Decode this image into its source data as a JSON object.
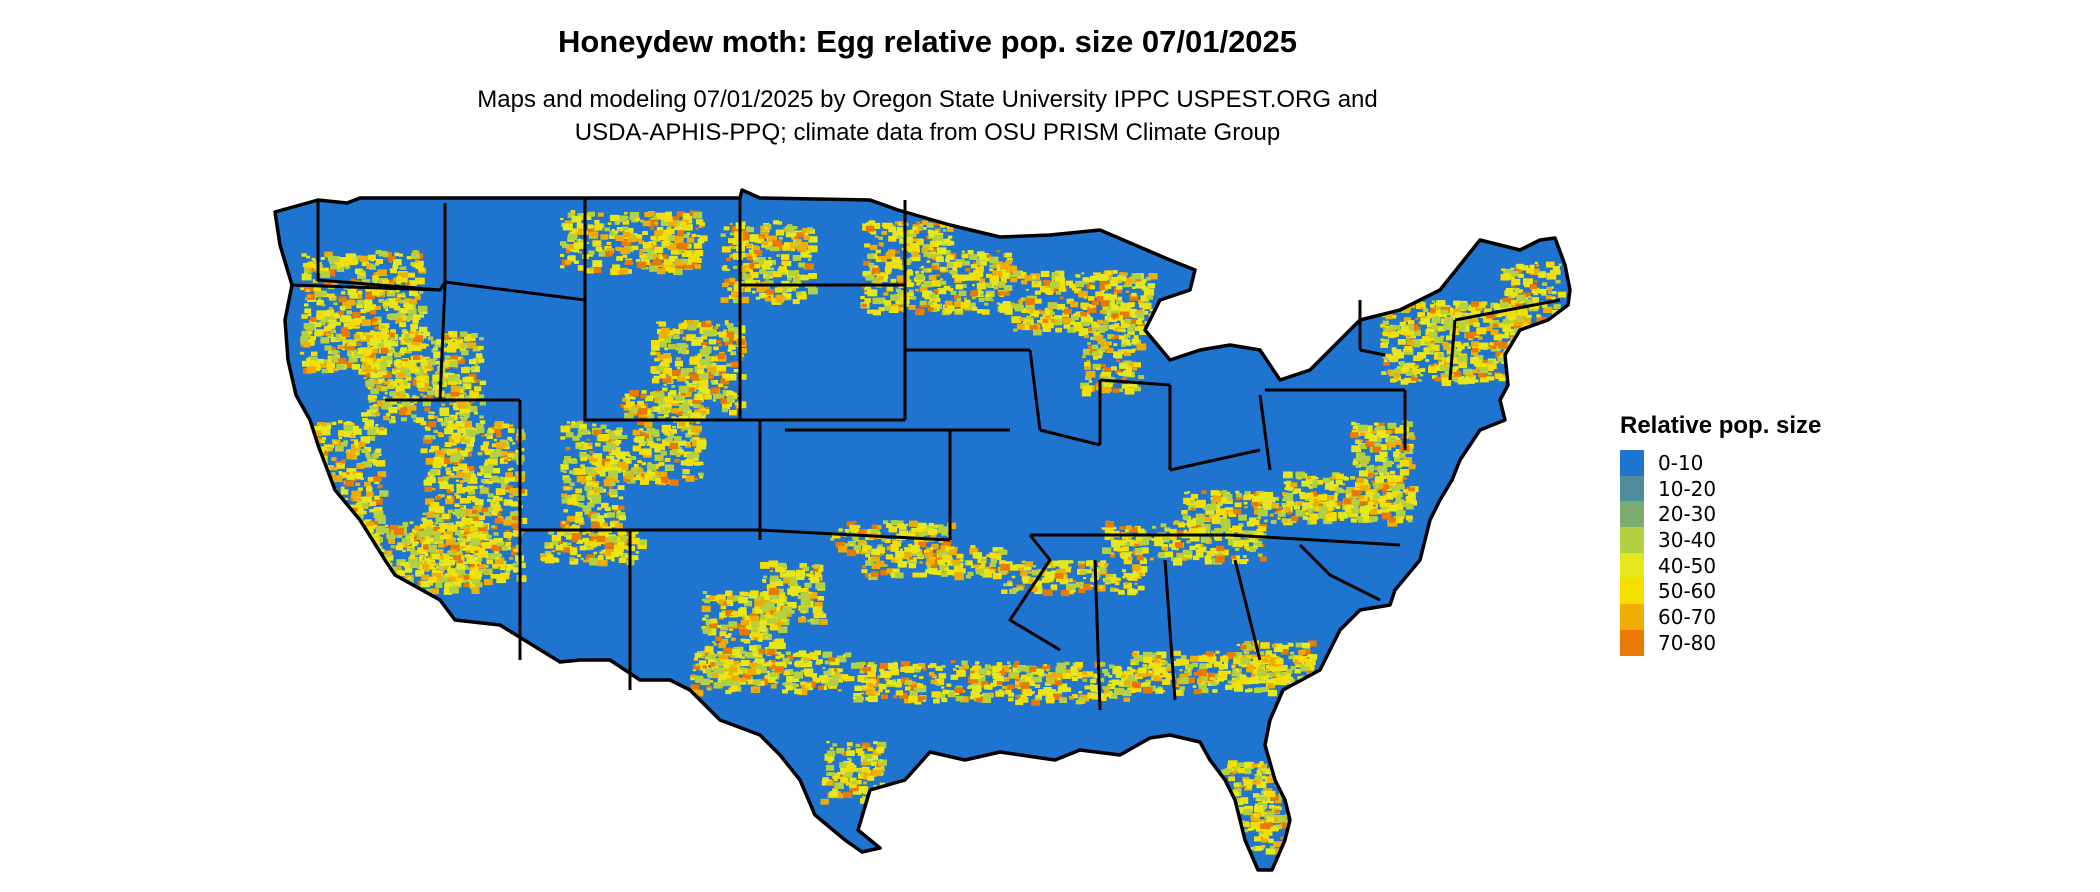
{
  "title": "Honeydew moth: Egg relative pop. size 07/01/2025",
  "subtitle": {
    "line1": "Maps and modeling 07/01/2025 by Oregon State University IPPC USPEST.ORG and",
    "line2": "USDA-APHIS-PPQ; climate data from OSU PRISM Climate Group"
  },
  "legend": {
    "title": "Relative pop. size",
    "items": [
      {
        "label": "0-10",
        "color": "#1f74cf"
      },
      {
        "label": "10-20",
        "color": "#4e8e9c"
      },
      {
        "label": "20-30",
        "color": "#7aac6e"
      },
      {
        "label": "30-40",
        "color": "#b3d040"
      },
      {
        "label": "40-50",
        "color": "#e5e81a"
      },
      {
        "label": "50-60",
        "color": "#f5df00"
      },
      {
        "label": "60-70",
        "color": "#f0ad00"
      },
      {
        "label": "70-80",
        "color": "#e87a00"
      }
    ]
  },
  "map": {
    "region": "Contiguous United States",
    "base_color": "#1f74cf",
    "border_color": "#000000"
  }
}
